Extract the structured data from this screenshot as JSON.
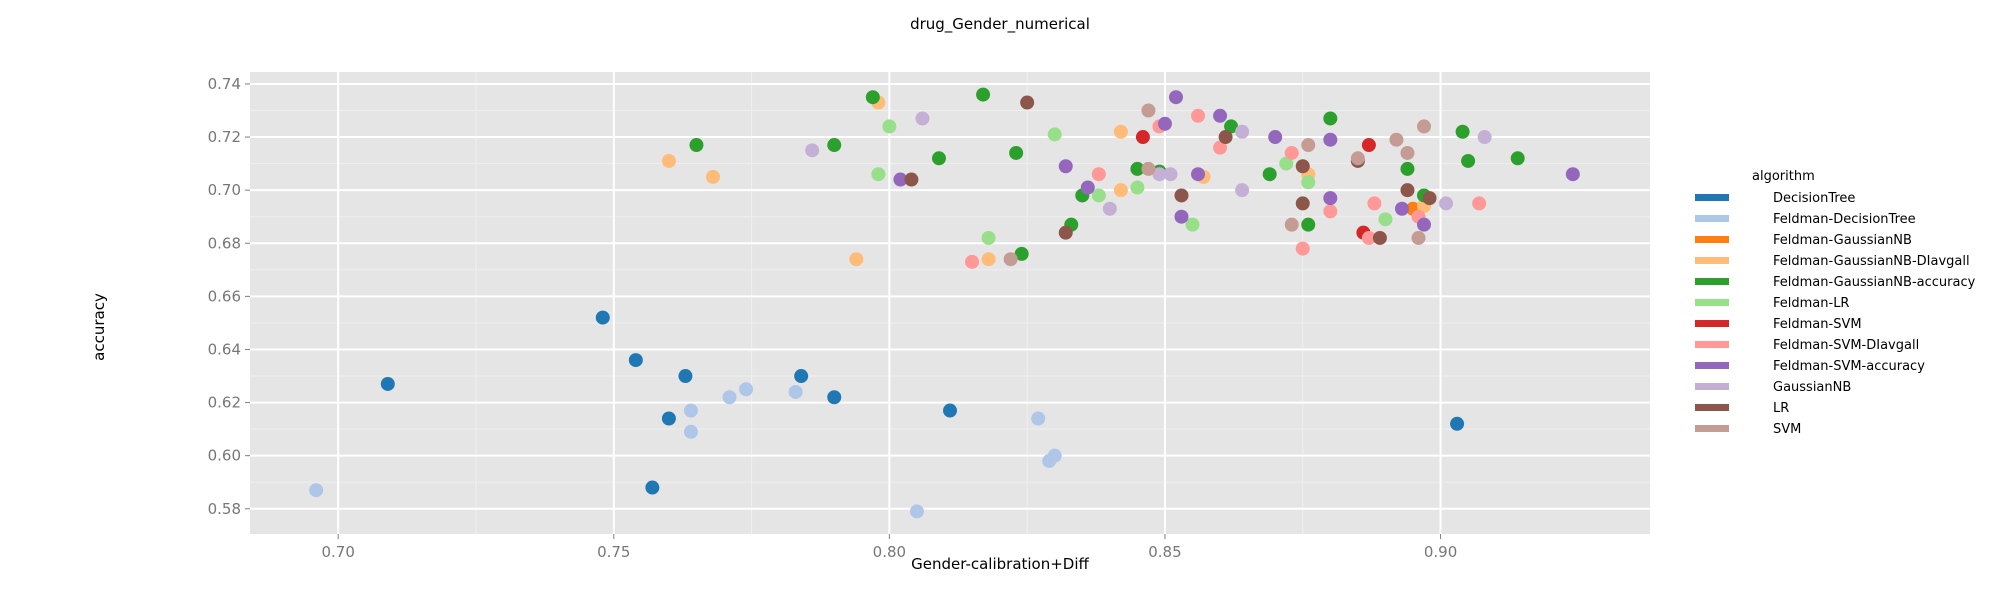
{
  "chart_data": {
    "type": "scatter",
    "title": "drug_Gender_numerical",
    "xlabel": "Gender-calibration+Diff",
    "ylabel": "accuracy",
    "xlim": [
      0.684,
      0.938
    ],
    "ylim": [
      0.5705,
      0.7445
    ],
    "x_ticks": [
      0.7,
      0.75,
      0.8,
      0.85,
      0.9
    ],
    "x_tick_labels": [
      "0.70",
      "0.75",
      "0.80",
      "0.85",
      "0.90"
    ],
    "y_ticks": [
      0.58,
      0.6,
      0.62,
      0.64,
      0.66,
      0.68,
      0.7,
      0.72,
      0.74
    ],
    "y_tick_labels": [
      "0.58",
      "0.60",
      "0.62",
      "0.64",
      "0.66",
      "0.68",
      "0.70",
      "0.72",
      "0.74"
    ],
    "grid": true,
    "legend": {
      "title": "algorithm",
      "position": "right"
    },
    "series": [
      {
        "name": "DecisionTree",
        "color": "#1f77b4",
        "points": [
          [
            0.709,
            0.627
          ],
          [
            0.748,
            0.652
          ],
          [
            0.754,
            0.636
          ],
          [
            0.757,
            0.588
          ],
          [
            0.76,
            0.614
          ],
          [
            0.763,
            0.63
          ],
          [
            0.784,
            0.63
          ],
          [
            0.79,
            0.622
          ],
          [
            0.811,
            0.617
          ],
          [
            0.903,
            0.612
          ]
        ]
      },
      {
        "name": "Feldman-DecisionTree",
        "color": "#aec7e8",
        "points": [
          [
            0.696,
            0.587
          ],
          [
            0.764,
            0.609
          ],
          [
            0.764,
            0.617
          ],
          [
            0.771,
            0.622
          ],
          [
            0.774,
            0.625
          ],
          [
            0.783,
            0.624
          ],
          [
            0.805,
            0.579
          ],
          [
            0.827,
            0.614
          ],
          [
            0.829,
            0.598
          ],
          [
            0.83,
            0.6
          ]
        ]
      },
      {
        "name": "Feldman-GaussianNB",
        "color": "#ff7f0e",
        "points": [
          [
            0.895,
            0.693
          ]
        ]
      },
      {
        "name": "Feldman-GaussianNB-DIavgall",
        "color": "#ffbb78",
        "points": [
          [
            0.76,
            0.711
          ],
          [
            0.768,
            0.705
          ],
          [
            0.794,
            0.674
          ],
          [
            0.798,
            0.733
          ],
          [
            0.818,
            0.674
          ],
          [
            0.842,
            0.722
          ],
          [
            0.842,
            0.7
          ],
          [
            0.857,
            0.705
          ],
          [
            0.876,
            0.706
          ],
          [
            0.897,
            0.694
          ]
        ]
      },
      {
        "name": "Feldman-GaussianNB-accuracy",
        "color": "#2ca02c",
        "points": [
          [
            0.765,
            0.717
          ],
          [
            0.79,
            0.717
          ],
          [
            0.797,
            0.735
          ],
          [
            0.809,
            0.712
          ],
          [
            0.817,
            0.736
          ],
          [
            0.823,
            0.714
          ],
          [
            0.824,
            0.676
          ],
          [
            0.833,
            0.687
          ],
          [
            0.835,
            0.698
          ],
          [
            0.845,
            0.708
          ],
          [
            0.849,
            0.707
          ],
          [
            0.862,
            0.724
          ],
          [
            0.869,
            0.706
          ],
          [
            0.876,
            0.687
          ],
          [
            0.88,
            0.727
          ],
          [
            0.894,
            0.708
          ],
          [
            0.897,
            0.698
          ],
          [
            0.904,
            0.722
          ],
          [
            0.905,
            0.711
          ],
          [
            0.914,
            0.712
          ]
        ]
      },
      {
        "name": "Feldman-LR",
        "color": "#98df8a",
        "points": [
          [
            0.798,
            0.706
          ],
          [
            0.8,
            0.724
          ],
          [
            0.818,
            0.682
          ],
          [
            0.83,
            0.721
          ],
          [
            0.838,
            0.698
          ],
          [
            0.845,
            0.701
          ],
          [
            0.855,
            0.687
          ],
          [
            0.872,
            0.71
          ],
          [
            0.876,
            0.703
          ],
          [
            0.89,
            0.689
          ]
        ]
      },
      {
        "name": "Feldman-SVM",
        "color": "#d62728",
        "points": [
          [
            0.846,
            0.72
          ],
          [
            0.886,
            0.684
          ],
          [
            0.887,
            0.717
          ]
        ]
      },
      {
        "name": "Feldman-SVM-DIavgall",
        "color": "#ff9896",
        "points": [
          [
            0.815,
            0.673
          ],
          [
            0.838,
            0.706
          ],
          [
            0.849,
            0.724
          ],
          [
            0.856,
            0.728
          ],
          [
            0.86,
            0.716
          ],
          [
            0.873,
            0.714
          ],
          [
            0.875,
            0.678
          ],
          [
            0.88,
            0.692
          ],
          [
            0.887,
            0.682
          ],
          [
            0.888,
            0.695
          ],
          [
            0.896,
            0.69
          ],
          [
            0.907,
            0.695
          ]
        ]
      },
      {
        "name": "Feldman-SVM-accuracy",
        "color": "#9467bd",
        "points": [
          [
            0.802,
            0.704
          ],
          [
            0.832,
            0.709
          ],
          [
            0.836,
            0.701
          ],
          [
            0.85,
            0.725
          ],
          [
            0.852,
            0.735
          ],
          [
            0.853,
            0.69
          ],
          [
            0.856,
            0.706
          ],
          [
            0.86,
            0.728
          ],
          [
            0.87,
            0.72
          ],
          [
            0.88,
            0.719
          ],
          [
            0.88,
            0.697
          ],
          [
            0.893,
            0.693
          ],
          [
            0.897,
            0.687
          ],
          [
            0.924,
            0.706
          ]
        ]
      },
      {
        "name": "GaussianNB",
        "color": "#c5b0d5",
        "points": [
          [
            0.786,
            0.715
          ],
          [
            0.806,
            0.727
          ],
          [
            0.84,
            0.693
          ],
          [
            0.849,
            0.706
          ],
          [
            0.851,
            0.706
          ],
          [
            0.864,
            0.722
          ],
          [
            0.864,
            0.7
          ],
          [
            0.901,
            0.695
          ],
          [
            0.908,
            0.72
          ]
        ]
      },
      {
        "name": "LR",
        "color": "#8c564b",
        "points": [
          [
            0.804,
            0.704
          ],
          [
            0.825,
            0.733
          ],
          [
            0.832,
            0.684
          ],
          [
            0.853,
            0.698
          ],
          [
            0.861,
            0.72
          ],
          [
            0.875,
            0.709
          ],
          [
            0.875,
            0.695
          ],
          [
            0.885,
            0.711
          ],
          [
            0.889,
            0.682
          ],
          [
            0.894,
            0.7
          ],
          [
            0.898,
            0.697
          ]
        ]
      },
      {
        "name": "SVM",
        "color": "#c49c94",
        "points": [
          [
            0.822,
            0.674
          ],
          [
            0.847,
            0.73
          ],
          [
            0.847,
            0.708
          ],
          [
            0.873,
            0.687
          ],
          [
            0.876,
            0.717
          ],
          [
            0.885,
            0.712
          ],
          [
            0.892,
            0.719
          ],
          [
            0.894,
            0.714
          ],
          [
            0.896,
            0.682
          ],
          [
            0.897,
            0.724
          ]
        ]
      }
    ]
  }
}
